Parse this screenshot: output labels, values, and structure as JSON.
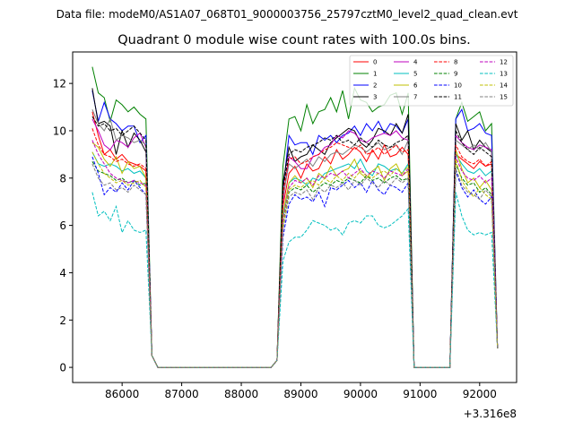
{
  "header": "Data file: modeM0/AS1A07_068T01_9000003756_25797cztM0_level2_quad_clean.evt",
  "chart_data": {
    "type": "line",
    "title": "Quadrant 0 module wise count rates with 100.0s bins.",
    "xlabel": "",
    "ylabel": "",
    "x_offset_label": "+3.316e8",
    "xlim": [
      85170,
      92620
    ],
    "ylim": [
      -0.64,
      13.33
    ],
    "x_ticks": [
      86000,
      87000,
      88000,
      89000,
      90000,
      91000,
      92000
    ],
    "x_tick_labels": [
      "86000",
      "87000",
      "88000",
      "89000",
      "90000",
      "91000",
      "92000"
    ],
    "y_ticks": [
      0,
      2,
      4,
      6,
      8,
      10,
      12
    ],
    "y_tick_labels": [
      "0",
      "2",
      "4",
      "6",
      "8",
      "10",
      "12"
    ],
    "grid": false,
    "legend_placement": "top-right",
    "bin_width": 100,
    "segments_x_start": [
      85500,
      88600,
      91600
    ],
    "zero_ranges": [
      [
        86600,
        88500
      ],
      [
        90900,
        91500
      ]
    ],
    "series": [
      {
        "name": "0",
        "color": "#ff0000",
        "style": "solid",
        "segments": [
          [
            10.8,
            9.8,
            9.0,
            9.2,
            8.8,
            9.0,
            8.7,
            8.6,
            8.5,
            8.3,
            0.5
          ],
          [
            0.3,
            6.8,
            8.2,
            8.5,
            8.0,
            8.6,
            8.3,
            8.4,
            8.9,
            8.6,
            9.2,
            8.8,
            9.0,
            9.3,
            9.1,
            8.7,
            9.2,
            8.8,
            9.4,
            8.9,
            9.0,
            9.3,
            9.0
          ],
          [
            9.0,
            8.8,
            8.6,
            8.4,
            8.7,
            8.5,
            8.6,
            0.8
          ]
        ]
      },
      {
        "name": "1",
        "color": "#008000",
        "style": "solid",
        "segments": [
          [
            12.7,
            11.6,
            11.4,
            10.4,
            11.3,
            11.1,
            10.8,
            11.0,
            10.7,
            10.5,
            0.5
          ],
          [
            0.3,
            8.5,
            10.5,
            10.6,
            10.0,
            11.1,
            10.3,
            10.8,
            10.9,
            11.4,
            10.8,
            11.7,
            10.5,
            11.8,
            11.3,
            11.2,
            10.8,
            11.0,
            11.1,
            11.5,
            11.6,
            10.7,
            11.6
          ],
          [
            10.5,
            11.2,
            10.4,
            10.6,
            10.8,
            10.0,
            10.3,
            0.8
          ]
        ]
      },
      {
        "name": "2",
        "color": "#0000ff",
        "style": "solid",
        "segments": [
          [
            11.7,
            10.4,
            11.2,
            10.5,
            10.3,
            10.0,
            10.2,
            10.2,
            9.5,
            9.8,
            0.5
          ],
          [
            0.3,
            7.5,
            9.8,
            9.4,
            9.5,
            9.5,
            9.0,
            9.8,
            9.6,
            9.8,
            9.5,
            9.8,
            9.9,
            10.2,
            9.8,
            10.3,
            10.0,
            10.4,
            9.9,
            10.3,
            10.2,
            9.9,
            10.5
          ],
          [
            10.5,
            10.9,
            10.0,
            10.1,
            10.3,
            9.9,
            9.8,
            0.8
          ]
        ]
      },
      {
        "name": "3",
        "color": "#000000",
        "style": "solid",
        "segments": [
          [
            11.8,
            10.3,
            10.4,
            10.2,
            9.0,
            10.0,
            9.3,
            9.9,
            9.6,
            9.1,
            0.5
          ],
          [
            0.3,
            7.8,
            9.3,
            8.7,
            8.9,
            9.0,
            9.4,
            9.2,
            9.0,
            9.5,
            9.7,
            9.9,
            10.1,
            10.0,
            9.5,
            9.3,
            9.6,
            10.1,
            10.0,
            9.8,
            10.3,
            9.9,
            10.7
          ],
          [
            10.3,
            9.6,
            10.0,
            9.2,
            9.6,
            9.3,
            9.1,
            0.8
          ]
        ]
      },
      {
        "name": "4",
        "color": "#bf00bf",
        "style": "solid",
        "segments": [
          [
            10.5,
            10.0,
            9.4,
            9.2,
            9.6,
            9.5,
            9.3,
            9.7,
            9.9,
            9.3,
            0.5
          ],
          [
            0.3,
            7.0,
            8.9,
            8.7,
            8.4,
            8.4,
            8.9,
            9.0,
            9.3,
            9.4,
            9.8,
            9.7,
            10.0,
            9.9,
            9.6,
            9.5,
            9.7,
            9.8,
            9.9,
            9.8,
            10.0,
            9.7,
            9.6
          ],
          [
            9.8,
            9.5,
            9.3,
            9.2,
            9.4,
            9.3,
            9.2,
            0.8
          ]
        ]
      },
      {
        "name": "5",
        "color": "#00bfbf",
        "style": "solid",
        "segments": [
          [
            9.1,
            8.6,
            8.5,
            8.6,
            8.5,
            8.3,
            8.4,
            8.2,
            8.3,
            8.0,
            0.5
          ],
          [
            0.3,
            6.3,
            7.8,
            8.0,
            7.9,
            7.7,
            8.0,
            7.9,
            8.2,
            8.3,
            8.4,
            8.5,
            8.6,
            8.4,
            8.8,
            8.3,
            8.1,
            8.6,
            8.5,
            8.3,
            8.4,
            8.2,
            8.6
          ],
          [
            9.0,
            8.6,
            8.3,
            8.2,
            8.4,
            8.1,
            8.3,
            0.8
          ]
        ]
      },
      {
        "name": "6",
        "color": "#bfbf00",
        "style": "solid",
        "segments": [
          [
            9.5,
            9.3,
            8.8,
            8.5,
            8.9,
            8.2,
            8.7,
            8.4,
            8.5,
            8.0,
            0.5
          ],
          [
            0.3,
            6.5,
            7.8,
            8.1,
            7.8,
            8.0,
            7.6,
            8.2,
            8.0,
            8.5,
            8.1,
            8.3,
            8.4,
            8.8,
            8.2,
            8.0,
            8.3,
            8.5,
            7.9,
            8.4,
            8.6,
            8.1,
            8.3
          ],
          [
            9.2,
            8.4,
            7.8,
            8.0,
            7.6,
            7.9,
            7.5,
            0.8
          ]
        ]
      },
      {
        "name": "7",
        "color": "#808080",
        "style": "solid",
        "segments": [
          [
            10.9,
            10.3,
            10.0,
            10.5,
            9.6,
            9.8,
            9.7,
            9.5,
            9.6,
            9.4,
            0.5
          ],
          [
            0.3,
            7.2,
            8.6,
            8.4,
            8.6,
            8.8,
            8.5,
            8.9,
            8.7,
            9.0,
            9.1,
            9.0,
            9.2,
            9.4,
            9.3,
            9.1,
            9.3,
            9.5,
            9.2,
            9.3,
            9.4,
            9.0,
            9.6
          ],
          [
            9.6,
            9.4,
            9.2,
            9.4,
            9.2,
            9.5,
            9.1,
            0.8
          ]
        ]
      },
      {
        "name": "8",
        "color": "#ff0000",
        "style": "dashed",
        "segments": [
          [
            10.1,
            9.4,
            9.0,
            8.9,
            8.7,
            8.8,
            8.6,
            8.5,
            8.6,
            8.4,
            0.5
          ],
          [
            0.3,
            7.4,
            8.8,
            8.9,
            8.6,
            8.7,
            8.9,
            9.0,
            9.2,
            9.3,
            9.5,
            9.4,
            9.3,
            9.2,
            9.4,
            9.0,
            9.1,
            9.3,
            9.0,
            9.2,
            9.4,
            9.1,
            9.2
          ],
          [
            9.4,
            8.9,
            8.7,
            8.6,
            8.8,
            8.5,
            8.7,
            0.8
          ]
        ]
      },
      {
        "name": "9",
        "color": "#008000",
        "style": "dashed",
        "segments": [
          [
            8.7,
            8.3,
            8.2,
            8.1,
            7.9,
            8.0,
            7.8,
            7.9,
            7.7,
            7.8,
            0.5
          ],
          [
            0.3,
            6.0,
            7.4,
            7.6,
            7.5,
            7.7,
            7.4,
            7.6,
            7.8,
            7.7,
            7.9,
            7.8,
            8.0,
            7.9,
            7.8,
            8.1,
            7.9,
            8.0,
            7.8,
            8.0,
            8.1,
            7.9,
            8.0
          ],
          [
            8.6,
            8.0,
            7.7,
            7.8,
            7.4,
            7.6,
            7.3,
            0.8
          ]
        ]
      },
      {
        "name": "10",
        "color": "#0000ff",
        "style": "dashed",
        "segments": [
          [
            8.9,
            8.2,
            7.3,
            7.6,
            7.4,
            7.8,
            7.5,
            7.9,
            7.6,
            7.3,
            0.5
          ],
          [
            0.3,
            5.5,
            6.9,
            7.3,
            7.1,
            7.2,
            7.0,
            7.4,
            6.8,
            7.6,
            7.5,
            7.7,
            7.9,
            7.6,
            7.8,
            7.4,
            7.9,
            7.5,
            7.3,
            7.7,
            7.6,
            7.4,
            7.8
          ],
          [
            8.3,
            7.6,
            7.2,
            7.5,
            7.1,
            6.9,
            7.2,
            0.8
          ]
        ]
      },
      {
        "name": "11",
        "color": "#000000",
        "style": "dashed",
        "segments": [
          [
            10.6,
            10.2,
            10.3,
            10.0,
            10.1,
            9.8,
            10.0,
            10.2,
            9.9,
            9.6,
            0.5
          ],
          [
            0.3,
            7.6,
            9.0,
            9.2,
            9.1,
            9.3,
            9.4,
            9.5,
            9.7,
            9.6,
            9.8,
            9.5,
            9.6,
            9.4,
            9.7,
            9.5,
            9.3,
            9.6,
            9.4,
            9.3,
            9.5,
            9.6,
            9.8
          ],
          [
            10.0,
            9.5,
            9.2,
            9.0,
            9.3,
            9.1,
            8.9,
            0.8
          ]
        ]
      },
      {
        "name": "12",
        "color": "#bf00bf",
        "style": "dashed",
        "segments": [
          [
            9.6,
            9.0,
            8.6,
            8.2,
            8.0,
            7.9,
            7.8,
            7.9,
            7.8,
            7.7,
            0.5
          ],
          [
            0.3,
            6.2,
            7.6,
            7.9,
            7.8,
            8.0,
            7.7,
            8.1,
            8.0,
            8.2,
            8.1,
            8.3,
            8.0,
            8.2,
            8.4,
            8.1,
            8.3,
            8.2,
            8.0,
            8.3,
            8.2,
            8.1,
            8.4
          ],
          [
            8.9,
            8.3,
            8.0,
            7.9,
            8.1,
            7.8,
            8.0,
            0.8
          ]
        ]
      },
      {
        "name": "13",
        "color": "#00bfbf",
        "style": "dashed",
        "segments": [
          [
            7.4,
            6.4,
            6.6,
            6.2,
            6.8,
            5.7,
            6.2,
            5.8,
            5.7,
            5.8,
            0.5
          ],
          [
            0.3,
            4.5,
            5.3,
            5.5,
            5.5,
            5.8,
            6.2,
            6.1,
            6.0,
            5.8,
            5.9,
            5.6,
            6.1,
            6.2,
            6.1,
            6.4,
            6.4,
            6.0,
            5.9,
            6.0,
            6.2,
            6.4,
            6.7
          ],
          [
            7.4,
            6.4,
            5.8,
            5.6,
            5.7,
            5.6,
            5.7,
            0.8
          ]
        ]
      },
      {
        "name": "14",
        "color": "#bfbf00",
        "style": "dashed",
        "segments": [
          [
            9.1,
            8.6,
            8.2,
            8.0,
            7.8,
            7.9,
            7.7,
            7.8,
            7.9,
            7.6,
            0.5
          ],
          [
            0.3,
            6.0,
            7.5,
            7.7,
            7.6,
            7.8,
            7.9,
            7.7,
            8.0,
            7.8,
            8.1,
            7.9,
            8.2,
            8.0,
            8.3,
            8.1,
            8.0,
            8.2,
            8.3,
            8.1,
            8.4,
            8.2,
            8.5
          ],
          [
            8.8,
            7.9,
            7.5,
            7.2,
            7.6,
            7.3,
            7.1,
            0.8
          ]
        ]
      },
      {
        "name": "15",
        "color": "#808080",
        "style": "dashed",
        "segments": [
          [
            8.6,
            8.0,
            7.7,
            7.8,
            7.5,
            7.6,
            7.4,
            7.7,
            7.5,
            7.3,
            0.5
          ],
          [
            0.3,
            5.8,
            7.2,
            7.4,
            7.3,
            7.5,
            7.1,
            7.6,
            7.4,
            7.7,
            7.6,
            7.8,
            7.5,
            7.9,
            7.7,
            8.0,
            7.8,
            7.6,
            7.9,
            7.7,
            8.0,
            7.8,
            8.0
          ],
          [
            8.4,
            7.7,
            7.4,
            7.3,
            7.1,
            7.5,
            7.2,
            0.8
          ]
        ]
      }
    ]
  }
}
